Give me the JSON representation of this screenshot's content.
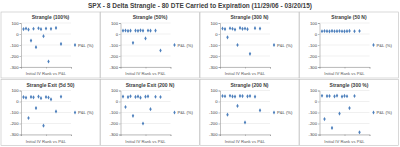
{
  "title": "SPX - 8 Delta Strangle - 80 DTE Carried to Expiration   (11/29/06 - 03/20/15)",
  "chart_data": [
    {
      "type": "scatter",
      "title": "Strangle (100%)",
      "x_label": "Initial IV Rank vs P&L",
      "x": [
        5,
        10,
        15,
        20,
        25,
        30,
        35,
        40,
        45,
        50,
        55,
        60,
        70,
        80
      ],
      "xlim": [
        0,
        100
      ],
      "xticks": [
        0,
        50,
        100
      ],
      "ylim": [
        -300,
        100
      ],
      "yticks": [
        -300,
        -200,
        -100,
        0,
        100
      ],
      "grid": true,
      "legend": "right",
      "tick_labels": "y",
      "series": [
        {
          "name": "P&L (%)",
          "color": "#4f81bd",
          "marker": "diamond",
          "values": [
            45,
            50,
            40,
            -60,
            48,
            -120,
            52,
            44,
            -20,
            50,
            -250,
            47,
            55,
            -90
          ]
        }
      ]
    },
    {
      "type": "scatter",
      "title": "Strangle (50%)",
      "x_label": "Initial IV Rank vs P&L",
      "x": [
        5,
        10,
        15,
        20,
        25,
        30,
        35,
        40,
        45,
        50,
        55,
        60,
        70,
        80
      ],
      "xlim": [
        0,
        100
      ],
      "xticks": [
        0,
        50,
        100
      ],
      "ylim": [
        -300,
        100
      ],
      "yticks": [
        -300,
        -200,
        -100,
        0,
        100
      ],
      "grid": true,
      "legend": "right",
      "tick_labels": "y",
      "series": [
        {
          "name": "P&L (%)",
          "color": "#4f81bd",
          "marker": "diamond",
          "values": [
            30,
            32,
            28,
            30,
            -80,
            31,
            29,
            33,
            30,
            -40,
            32,
            30,
            31,
            -150
          ]
        }
      ]
    },
    {
      "type": "scatter",
      "title": "Strangle (300 N)",
      "x_label": "Initial IV Rank vs P&L",
      "x": [
        5,
        10,
        15,
        20,
        25,
        30,
        35,
        40,
        45,
        50,
        55,
        60,
        70,
        80
      ],
      "xlim": [
        0,
        100
      ],
      "xticks": [
        0,
        50,
        100
      ],
      "ylim": [
        -300,
        100
      ],
      "yticks": [
        -300,
        -200,
        -100,
        0,
        100
      ],
      "grid": true,
      "legend": "right",
      "tick_labels": "y",
      "series": [
        {
          "name": "P&L (%)",
          "color": "#4f81bd",
          "marker": "diamond",
          "values": [
            50,
            45,
            -30,
            52,
            48,
            40,
            -100,
            55,
            47,
            50,
            44,
            -180,
            53,
            49
          ]
        }
      ]
    },
    {
      "type": "scatter",
      "title": "Strangle (50 N)",
      "x_label": "Initial IV Rank vs P&L",
      "x": [
        5,
        10,
        15,
        20,
        25,
        30,
        35,
        40,
        45,
        50,
        55,
        60,
        70,
        80
      ],
      "xlim": [
        0,
        100
      ],
      "xticks": [
        0,
        50,
        100
      ],
      "ylim": [
        -300,
        100
      ],
      "yticks": [
        -300,
        -200,
        -100,
        0,
        100
      ],
      "grid": true,
      "legend": "right",
      "tick_labels": "y",
      "series": [
        {
          "name": "P&L (%)",
          "color": "#4f81bd",
          "marker": "diamond",
          "values": [
            25,
            27,
            26,
            24,
            28,
            25,
            26,
            27,
            25,
            24,
            26,
            28,
            25,
            27
          ]
        }
      ]
    },
    {
      "type": "scatter",
      "title": "Strangle Exit (5d 50)",
      "x_label": "Initial IV Rank vs P&L",
      "x": [
        5,
        10,
        15,
        20,
        25,
        30,
        35,
        40,
        45,
        50,
        55,
        60,
        70,
        80
      ],
      "xlim": [
        0,
        100
      ],
      "xticks": [
        0,
        50,
        100
      ],
      "ylim": [
        -300,
        100
      ],
      "yticks": [
        -300,
        -200,
        -100,
        0,
        100
      ],
      "grid": true,
      "legend": "right",
      "tick_labels": "y",
      "series": [
        {
          "name": "P&L (%)",
          "color": "#4f81bd",
          "marker": "diamond",
          "values": [
            40,
            35,
            -150,
            42,
            38,
            -60,
            45,
            30,
            -220,
            41,
            36,
            20,
            -90,
            44
          ]
        }
      ]
    },
    {
      "type": "scatter",
      "title": "Strangle Exit (200 N)",
      "x_label": "Initial IV Rank vs P&L",
      "x": [
        5,
        10,
        15,
        20,
        25,
        30,
        35,
        40,
        45,
        50,
        55,
        60,
        70,
        80
      ],
      "xlim": [
        0,
        100
      ],
      "xticks": [
        0,
        50,
        100
      ],
      "ylim": [
        -300,
        100
      ],
      "yticks": [
        -300,
        -200,
        -100,
        0,
        100
      ],
      "grid": true,
      "legend": "right",
      "tick_labels": "y",
      "series": [
        {
          "name": "P&L (%)",
          "color": "#4f81bd",
          "marker": "diamond",
          "values": [
            45,
            -50,
            40,
            48,
            -130,
            42,
            46,
            35,
            -200,
            44,
            47,
            -70,
            43,
            41
          ]
        }
      ]
    },
    {
      "type": "scatter",
      "title": "Strangle (200 N)",
      "x_label": "Initial IV Rank vs P&L",
      "x": [
        5,
        10,
        15,
        20,
        25,
        30,
        35,
        40,
        45,
        50,
        55,
        60,
        70,
        80
      ],
      "xlim": [
        0,
        100
      ],
      "xticks": [
        0,
        50,
        100
      ],
      "ylim": [
        -300,
        100
      ],
      "yticks": [
        -300,
        -200,
        -100,
        0,
        100
      ],
      "grid": true,
      "legend": "right",
      "tick_labels": "y",
      "series": [
        {
          "name": "P&L (%)",
          "color": "#4f81bd",
          "marker": "diamond",
          "values": [
            50,
            48,
            -120,
            52,
            46,
            45,
            -40,
            51,
            49,
            -190,
            47,
            50,
            44,
            -80
          ]
        }
      ]
    },
    {
      "type": "scatter",
      "title": "Strangle (300 %)",
      "x_label": "Initial IV Rank vs P&L",
      "x": [
        5,
        10,
        15,
        20,
        25,
        30,
        35,
        40,
        45,
        50,
        55,
        60,
        70,
        80
      ],
      "xlim": [
        0,
        100
      ],
      "xticks": [
        0,
        50,
        100
      ],
      "ylim": [
        -300,
        100
      ],
      "yticks": [
        -300,
        -200,
        -100,
        0,
        100
      ],
      "grid": true,
      "legend": "right",
      "tick_labels": "y",
      "series": [
        {
          "name": "P&L (%)",
          "color": "#4f81bd",
          "marker": "diamond",
          "values": [
            52,
            -160,
            49,
            50,
            -240,
            47,
            53,
            -110,
            45,
            51,
            48,
            -60,
            50,
            -280
          ]
        }
      ]
    }
  ]
}
